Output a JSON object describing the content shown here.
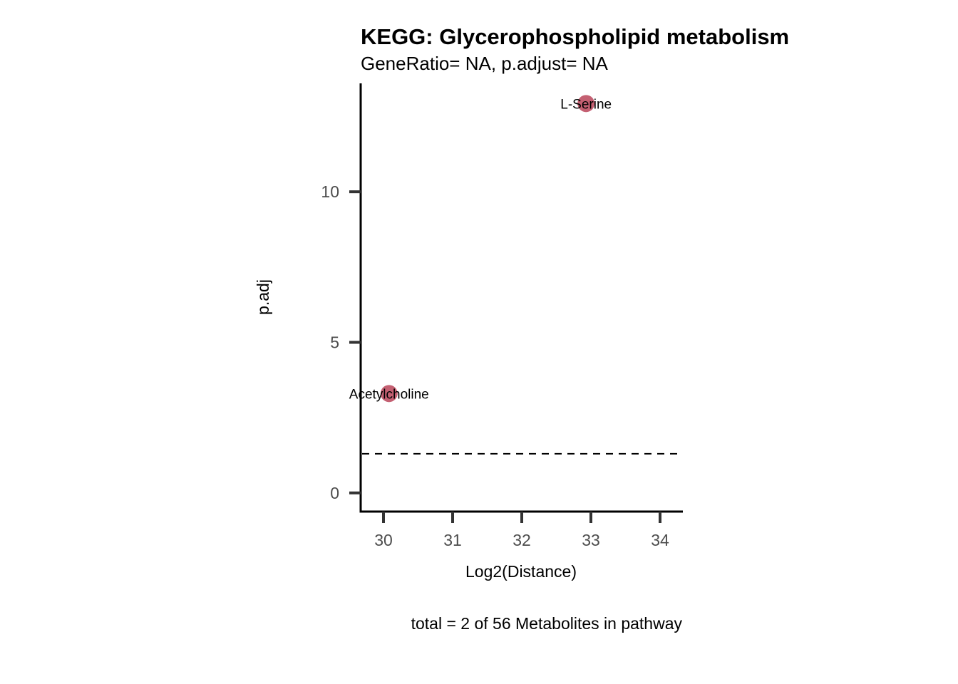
{
  "chart_data": {
    "type": "scatter",
    "title": "KEGG: Glycerophospholipid metabolism",
    "subtitle": "GeneRatio= NA, p.adjust= NA",
    "xlabel": "Log2(Distance)",
    "ylabel": "p.adj",
    "caption": "total = 2 of 56 Metabolites in pathway",
    "xlim": [
      29.67,
      34.33
    ],
    "ylim": [
      -0.62,
      13.6
    ],
    "x_ticks": [
      30,
      31,
      32,
      33,
      34
    ],
    "y_ticks": [
      0,
      5,
      10
    ],
    "x_tick_labels": [
      "30",
      "31",
      "32",
      "33",
      "34"
    ],
    "y_tick_labels": [
      "0",
      "5",
      "10"
    ],
    "threshold_line": {
      "y": 1.3,
      "style": "dashed"
    },
    "point_color": "#c1576a",
    "points": [
      {
        "label": "L-Serine",
        "x": 32.93,
        "y": 12.93
      },
      {
        "label": "Acetylcholine",
        "x": 30.08,
        "y": 3.3
      }
    ],
    "grid": false,
    "legend": "none"
  }
}
